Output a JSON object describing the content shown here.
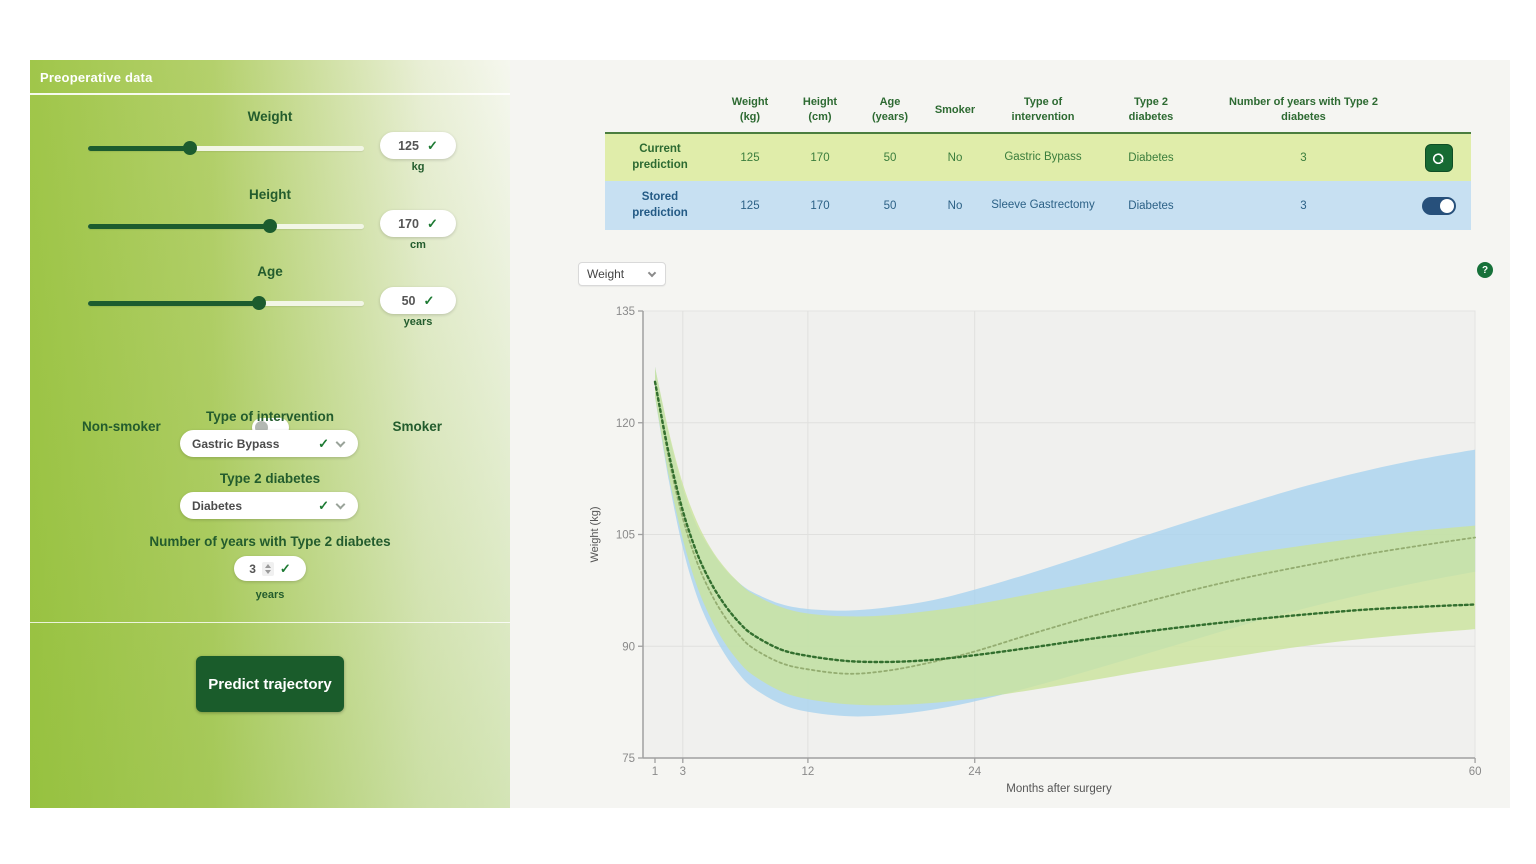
{
  "panel": {
    "title": "Preoperative data",
    "sliders": [
      {
        "label": "Weight",
        "value": "125",
        "unit": "kg",
        "percent": 37
      },
      {
        "label": "Height",
        "value": "170",
        "unit": "cm",
        "percent": 66
      },
      {
        "label": "Age",
        "value": "50",
        "unit": "years",
        "percent": 62
      }
    ],
    "smoker_toggle": {
      "left_label": "Non-smoker",
      "right_label": "Smoker",
      "state": "off"
    },
    "intervention": {
      "label": "Type of intervention",
      "value": "Gastric Bypass"
    },
    "diabetes": {
      "label": "Type 2 diabetes",
      "value": "Diabetes"
    },
    "years_diabetes": {
      "label": "Number of years with Type 2 diabetes",
      "value": "3",
      "unit": "years"
    },
    "predict_button": "Predict trajectory"
  },
  "table": {
    "headers": [
      "Weight\n(kg)",
      "Height\n(cm)",
      "Age\n(years)",
      "Smoker",
      "Type of\nintervention",
      "Type 2\ndiabetes",
      "Number of years with Type 2\ndiabetes"
    ],
    "rows": [
      {
        "label": "Current\nprediction",
        "weight": "125",
        "height": "170",
        "age": "50",
        "smoker": "No",
        "intervention": "Gastric Bypass",
        "diabetes": "Diabetes",
        "years": "3",
        "action": "save"
      },
      {
        "label": "Stored\nprediction",
        "weight": "125",
        "height": "170",
        "age": "50",
        "smoker": "No",
        "intervention": "Sleeve Gastrectomy",
        "diabetes": "Diabetes",
        "years": "3",
        "action": "toggle-on"
      }
    ]
  },
  "controls": {
    "metric_select_value": "Weight",
    "help_icon": "?"
  },
  "colors": {
    "dark_green": "#1c5c2e",
    "button_green": "#1a5c2b",
    "navy": "#27507b",
    "current_row_bg": "#e0edaa",
    "stored_row_bg": "#c7e0f2",
    "plot_bg": "#f0f0ee",
    "grid": "#e0e0de",
    "axis": "#a0a0a0"
  },
  "chart_data": {
    "type": "line",
    "title": "",
    "xlabel": "Months after surgery",
    "ylabel": "Weight (kg)",
    "xlim": [
      1,
      60
    ],
    "ylim": [
      75,
      135
    ],
    "x_ticks": [
      1,
      3,
      12,
      24,
      60
    ],
    "y_ticks": [
      75,
      90,
      105,
      120,
      135
    ],
    "grid_x": [
      3,
      12,
      24
    ],
    "grid_y": [
      90,
      105,
      120
    ],
    "grid": true,
    "legend_position": "none",
    "months": [
      1,
      2,
      3,
      4,
      5,
      6,
      7,
      8,
      10,
      12,
      15,
      18,
      21,
      24,
      28,
      32,
      36,
      40,
      44,
      48,
      52,
      56,
      60
    ],
    "series": [
      {
        "name": "Stored prediction (Sleeve Gastrectomy)",
        "style": "dotted",
        "line_color": "#94ad71",
        "band_color": "#a9d3ef",
        "values": [
          125.5,
          115.2,
          107.2,
          101.4,
          97.2,
          94.0,
          91.6,
          89.8,
          87.8,
          86.9,
          86.3,
          86.8,
          87.9,
          89.3,
          91.6,
          93.8,
          95.8,
          97.7,
          99.4,
          100.9,
          102.3,
          103.5,
          104.6
        ],
        "band_low": [
          123.5,
          112.2,
          103.2,
          96.8,
          92.4,
          89.0,
          86.4,
          84.5,
          82.3,
          81.2,
          80.6,
          80.8,
          81.5,
          82.6,
          84.5,
          86.6,
          88.8,
          91.0,
          93.2,
          95.2,
          97.0,
          98.6,
          100.0
        ],
        "band_high": [
          127.5,
          118.4,
          111.2,
          106.2,
          103.0,
          100.4,
          98.6,
          97.3,
          95.7,
          95.0,
          94.8,
          95.3,
          96.2,
          97.6,
          99.8,
          102.2,
          104.7,
          107.1,
          109.4,
          111.6,
          113.5,
          115.1,
          116.4
        ]
      },
      {
        "name": "Current prediction (Gastric Bypass)",
        "style": "dotted",
        "line_color": "#336f2f",
        "band_color": "#cbe39b",
        "values": [
          125.5,
          115.8,
          108.2,
          102.6,
          98.6,
          95.6,
          93.3,
          91.6,
          89.6,
          88.7,
          88.0,
          87.9,
          88.2,
          88.8,
          89.8,
          90.9,
          91.9,
          92.8,
          93.6,
          94.3,
          94.9,
          95.3,
          95.6
        ],
        "band_low": [
          123.5,
          112.8,
          104.4,
          98.2,
          93.8,
          90.5,
          88.0,
          86.2,
          84.0,
          82.9,
          82.2,
          82.1,
          82.4,
          83.0,
          84.1,
          85.3,
          86.6,
          87.8,
          89.0,
          90.1,
          91.0,
          91.7,
          92.3
        ],
        "band_high": [
          127.5,
          118.8,
          111.8,
          106.8,
          103.2,
          100.6,
          98.6,
          97.1,
          95.3,
          94.4,
          94.0,
          94.2,
          94.8,
          95.6,
          97.0,
          98.4,
          99.8,
          101.2,
          102.5,
          103.6,
          104.6,
          105.5,
          106.2
        ]
      }
    ]
  }
}
